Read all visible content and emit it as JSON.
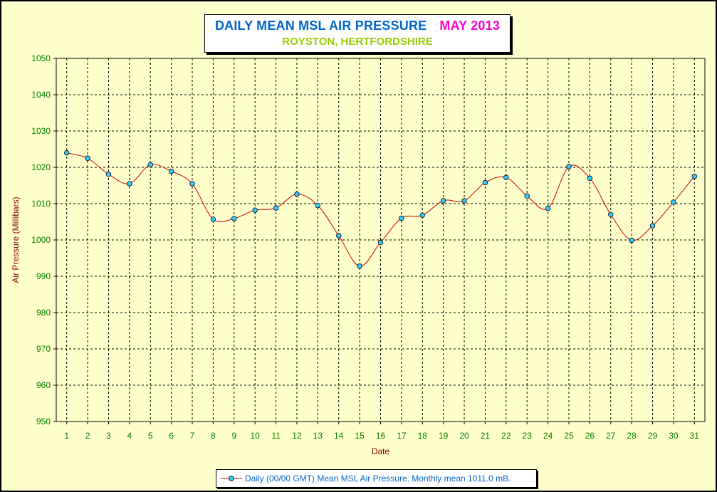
{
  "title": {
    "main": "DAILY MEAN MSL AIR PRESSURE",
    "month": "MAY 2013",
    "subtitle": "ROYSTON, HERTFORDSHIRE"
  },
  "colors": {
    "background": "#ffffcc",
    "title_main": "#0066cc",
    "title_month": "#ff00cc",
    "subtitle": "#99cc00",
    "axis_label": "#800000",
    "tick_label": "#008000",
    "series_line": "#cc0000",
    "marker_fill": "#33ccff",
    "legend_text": "#0066cc"
  },
  "legend": {
    "label": "Daily (00/00 GMT) Mean MSL Air Pressure. Monthly mean 1011.0 mB."
  },
  "chart_data": {
    "type": "line",
    "title": "DAILY MEAN MSL AIR PRESSURE",
    "xlabel": "Date",
    "ylabel": "Air Pressure (Millibars)",
    "x": [
      1,
      2,
      3,
      4,
      5,
      6,
      7,
      8,
      9,
      10,
      11,
      12,
      13,
      14,
      15,
      16,
      17,
      18,
      19,
      20,
      21,
      22,
      23,
      24,
      25,
      26,
      27,
      28,
      29,
      30,
      31
    ],
    "xlim": [
      0.5,
      31.5
    ],
    "ylim": [
      950,
      1050
    ],
    "y_ticks": [
      950,
      960,
      970,
      980,
      990,
      1000,
      1010,
      1020,
      1030,
      1040,
      1050
    ],
    "grid": true,
    "legend_position": "bottom",
    "series": [
      {
        "name": "Daily (00/00 GMT) Mean MSL Air Pressure. Monthly mean 1011.0 mB.",
        "values": [
          1024.0,
          1022.5,
          1018.1,
          1015.5,
          1020.7,
          1018.9,
          1015.5,
          1005.7,
          1005.9,
          1008.2,
          1008.8,
          1012.6,
          1009.5,
          1001.2,
          992.8,
          999.3,
          1006.0,
          1006.8,
          1010.8,
          1010.8,
          1015.8,
          1017.2,
          1012.1,
          1008.7,
          1020.2,
          1017.0,
          1007.0,
          999.9,
          1003.9,
          1010.4,
          1017.5
        ]
      }
    ]
  }
}
